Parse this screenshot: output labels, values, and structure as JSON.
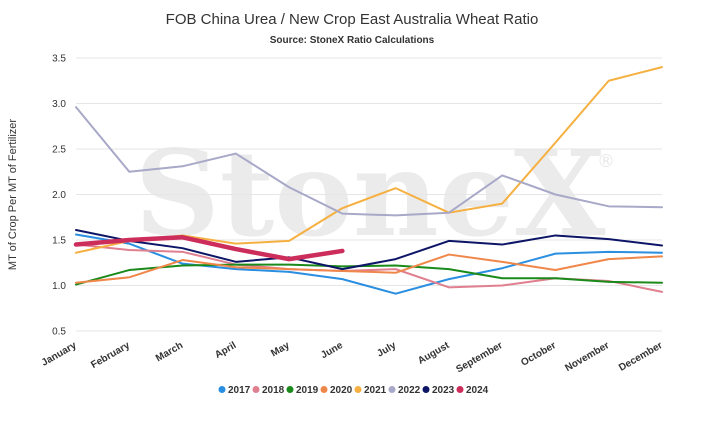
{
  "chart_data": {
    "type": "line",
    "title": "FOB China Urea / New Crop East Australia Wheat Ratio",
    "subtitle": "Source: StoneX Ratio Calculations",
    "ylabel": "MT of Crop Per MT of Fertilizer",
    "xlabel": "",
    "watermark": "StoneX",
    "watermark_mark": "®",
    "ylim": [
      0.5,
      3.5
    ],
    "yticks": [
      0.5,
      1.0,
      1.5,
      2.0,
      2.5,
      3.0,
      3.5
    ],
    "ytick_labels": [
      "0.5",
      "1.0",
      "1.5",
      "2.0",
      "2.5",
      "3.0",
      "3.5"
    ],
    "grid": true,
    "legend": "bottom",
    "categories": [
      "January",
      "February",
      "March",
      "April",
      "May",
      "June",
      "July",
      "August",
      "September",
      "October",
      "November",
      "December"
    ],
    "series": [
      {
        "name": "2017",
        "color": "#2a8fe0",
        "width": 2,
        "values": [
          1.56,
          1.46,
          1.24,
          1.18,
          1.15,
          1.07,
          0.91,
          1.07,
          1.19,
          1.35,
          1.37,
          1.36
        ]
      },
      {
        "name": "2018",
        "color": "#e07f8f",
        "width": 2,
        "values": [
          1.45,
          1.39,
          1.37,
          1.23,
          1.18,
          1.16,
          1.18,
          0.98,
          1.0,
          1.08,
          1.05,
          0.93
        ]
      },
      {
        "name": "2019",
        "color": "#1a8a1a",
        "width": 2,
        "values": [
          1.01,
          1.17,
          1.22,
          1.23,
          1.23,
          1.21,
          1.22,
          1.18,
          1.08,
          1.08,
          1.04,
          1.03
        ]
      },
      {
        "name": "2020",
        "color": "#f0874a",
        "width": 2,
        "values": [
          1.03,
          1.09,
          1.28,
          1.2,
          1.18,
          1.16,
          1.14,
          1.34,
          1.26,
          1.17,
          1.29,
          1.32
        ]
      },
      {
        "name": "2021",
        "color": "#f5b041",
        "width": 2,
        "values": [
          1.36,
          1.49,
          1.55,
          1.46,
          1.49,
          1.85,
          2.07,
          1.8,
          1.9,
          2.57,
          3.25,
          3.4
        ]
      },
      {
        "name": "2022",
        "color": "#a8a8c8",
        "width": 2,
        "values": [
          2.96,
          2.25,
          2.31,
          2.45,
          2.08,
          1.79,
          1.77,
          1.8,
          2.21,
          2.0,
          1.87,
          1.86
        ]
      },
      {
        "name": "2023",
        "color": "#0d1566",
        "width": 2,
        "values": [
          1.61,
          1.49,
          1.41,
          1.26,
          1.31,
          1.18,
          1.29,
          1.49,
          1.45,
          1.55,
          1.51,
          1.44
        ]
      },
      {
        "name": "2024",
        "color": "#cc2d5b",
        "width": 4.5,
        "values": [
          1.45,
          1.5,
          1.53,
          1.4,
          1.29,
          1.38,
          null,
          null,
          null,
          null,
          null,
          null
        ]
      }
    ]
  }
}
